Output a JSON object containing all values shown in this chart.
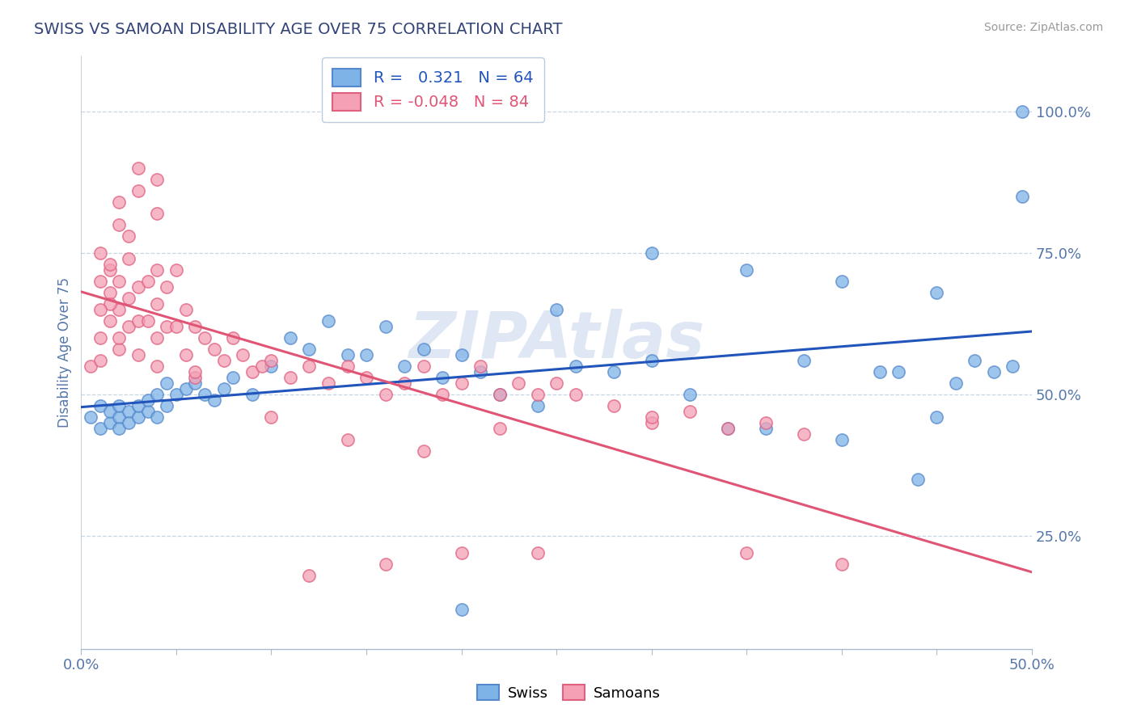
{
  "title": "SWISS VS SAMOAN DISABILITY AGE OVER 75 CORRELATION CHART",
  "source": "Source: ZipAtlas.com",
  "ylabel": "Disability Age Over 75",
  "ytick_labels": [
    "25.0%",
    "50.0%",
    "75.0%",
    "100.0%"
  ],
  "ytick_values": [
    0.25,
    0.5,
    0.75,
    1.0
  ],
  "xlim": [
    0.0,
    0.5
  ],
  "ylim": [
    0.05,
    1.1
  ],
  "legend_r_swiss": "0.321",
  "legend_n_swiss": "64",
  "legend_r_samoan": "-0.048",
  "legend_n_samoan": "84",
  "swiss_color": "#7EB3E8",
  "samoan_color": "#F4A0B5",
  "swiss_edge_color": "#5588CC",
  "samoan_edge_color": "#E06080",
  "trend_swiss_color": "#2255BB",
  "trend_samoan_color": "#E05575",
  "watermark_color": "#C8D8EC",
  "title_color": "#334477",
  "axis_label_color": "#5577AA",
  "tick_label_color": "#5577AA",
  "grid_color": "#BBCCDD",
  "swiss_x": [
    0.005,
    0.01,
    0.01,
    0.015,
    0.015,
    0.02,
    0.02,
    0.02,
    0.025,
    0.025,
    0.03,
    0.03,
    0.035,
    0.035,
    0.04,
    0.04,
    0.045,
    0.045,
    0.05,
    0.055,
    0.06,
    0.065,
    0.07,
    0.075,
    0.08,
    0.09,
    0.1,
    0.11,
    0.12,
    0.13,
    0.14,
    0.15,
    0.16,
    0.17,
    0.18,
    0.19,
    0.2,
    0.21,
    0.22,
    0.24,
    0.26,
    0.28,
    0.3,
    0.32,
    0.34,
    0.36,
    0.38,
    0.4,
    0.42,
    0.43,
    0.44,
    0.45,
    0.46,
    0.47,
    0.48,
    0.49,
    0.495,
    0.495,
    0.45,
    0.4,
    0.35,
    0.3,
    0.25,
    0.2
  ],
  "swiss_y": [
    0.46,
    0.44,
    0.48,
    0.45,
    0.47,
    0.46,
    0.48,
    0.44,
    0.47,
    0.45,
    0.46,
    0.48,
    0.47,
    0.49,
    0.46,
    0.5,
    0.48,
    0.52,
    0.5,
    0.51,
    0.52,
    0.5,
    0.49,
    0.51,
    0.53,
    0.5,
    0.55,
    0.6,
    0.58,
    0.63,
    0.57,
    0.57,
    0.62,
    0.55,
    0.58,
    0.53,
    0.57,
    0.54,
    0.5,
    0.48,
    0.55,
    0.54,
    0.56,
    0.5,
    0.44,
    0.44,
    0.56,
    0.42,
    0.54,
    0.54,
    0.35,
    0.46,
    0.52,
    0.56,
    0.54,
    0.55,
    1.0,
    0.85,
    0.68,
    0.7,
    0.72,
    0.75,
    0.65,
    0.12
  ],
  "samoan_x": [
    0.005,
    0.01,
    0.01,
    0.015,
    0.015,
    0.015,
    0.02,
    0.02,
    0.02,
    0.02,
    0.025,
    0.025,
    0.025,
    0.03,
    0.03,
    0.03,
    0.035,
    0.035,
    0.04,
    0.04,
    0.04,
    0.04,
    0.045,
    0.045,
    0.05,
    0.05,
    0.055,
    0.055,
    0.06,
    0.06,
    0.065,
    0.07,
    0.075,
    0.08,
    0.085,
    0.09,
    0.095,
    0.1,
    0.11,
    0.12,
    0.13,
    0.14,
    0.15,
    0.16,
    0.17,
    0.18,
    0.19,
    0.2,
    0.21,
    0.22,
    0.23,
    0.24,
    0.25,
    0.26,
    0.28,
    0.3,
    0.32,
    0.34,
    0.36,
    0.38,
    0.3,
    0.22,
    0.18,
    0.14,
    0.1,
    0.06,
    0.04,
    0.03,
    0.025,
    0.02,
    0.02,
    0.015,
    0.015,
    0.01,
    0.01,
    0.01,
    0.03,
    0.04,
    0.35,
    0.4,
    0.24,
    0.2,
    0.16,
    0.12
  ],
  "samoan_y": [
    0.55,
    0.6,
    0.56,
    0.68,
    0.63,
    0.72,
    0.65,
    0.7,
    0.58,
    0.6,
    0.67,
    0.62,
    0.74,
    0.63,
    0.69,
    0.57,
    0.7,
    0.63,
    0.72,
    0.66,
    0.6,
    0.55,
    0.69,
    0.62,
    0.72,
    0.62,
    0.65,
    0.57,
    0.62,
    0.53,
    0.6,
    0.58,
    0.56,
    0.6,
    0.57,
    0.54,
    0.55,
    0.56,
    0.53,
    0.55,
    0.52,
    0.55,
    0.53,
    0.5,
    0.52,
    0.55,
    0.5,
    0.52,
    0.55,
    0.5,
    0.52,
    0.5,
    0.52,
    0.5,
    0.48,
    0.45,
    0.47,
    0.44,
    0.45,
    0.43,
    0.46,
    0.44,
    0.4,
    0.42,
    0.46,
    0.54,
    0.82,
    0.86,
    0.78,
    0.84,
    0.8,
    0.73,
    0.66,
    0.75,
    0.7,
    0.65,
    0.9,
    0.88,
    0.22,
    0.2,
    0.22,
    0.22,
    0.2,
    0.18
  ]
}
